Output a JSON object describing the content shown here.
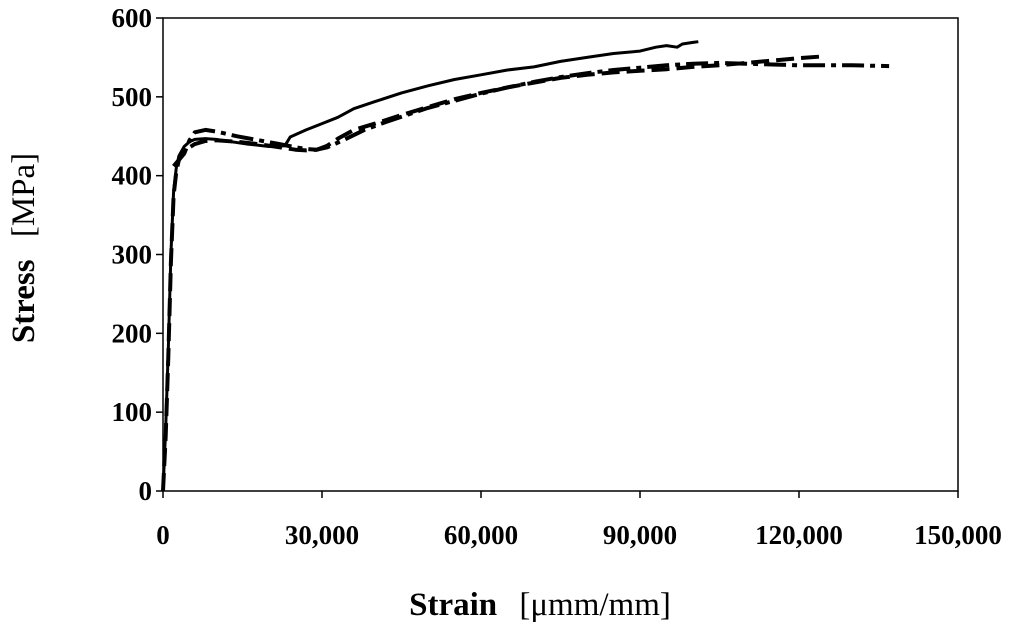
{
  "chart_data": {
    "type": "line",
    "title": "",
    "xlabel_main": "Strain",
    "xlabel_unit": "[μmm/mm]",
    "ylabel_main": "Stress",
    "ylabel_unit": "[MPa]",
    "xlim": [
      0,
      150000
    ],
    "ylim": [
      0,
      600
    ],
    "xticks": [
      0,
      30000,
      60000,
      90000,
      120000,
      150000
    ],
    "xtick_labels": [
      "0",
      "30,000",
      "60,000",
      "90,000",
      "120,000",
      "150,000"
    ],
    "yticks": [
      0,
      100,
      200,
      300,
      400,
      500,
      600
    ],
    "ytick_labels": [
      "0",
      "100",
      "200",
      "300",
      "400",
      "500",
      "600"
    ],
    "grid": false,
    "series": [
      {
        "style": "solid",
        "x": [
          0,
          500,
          1000,
          1500,
          2000,
          2500,
          3000,
          4000,
          5000,
          6000,
          8000,
          10000,
          13000,
          16000,
          20000,
          23000,
          24000,
          27000,
          30000,
          33000,
          36000,
          40000,
          45000,
          50000,
          55000,
          60000,
          65000,
          70000,
          75000,
          80000,
          85000,
          90000,
          93000,
          95000,
          97000,
          98000,
          100000,
          101000
        ],
        "y": [
          0,
          80,
          180,
          300,
          380,
          410,
          425,
          437,
          443,
          446,
          447,
          446,
          443,
          440,
          437,
          438,
          449,
          458,
          466,
          474,
          485,
          494,
          505,
          514,
          522,
          528,
          534,
          538,
          545,
          550,
          555,
          558,
          563,
          565,
          563,
          567,
          569,
          570
        ]
      },
      {
        "style": "dashed",
        "x": [
          0,
          500,
          1000,
          1500,
          2000,
          2500,
          3000,
          4000,
          5000,
          6000,
          8000,
          10000,
          14000,
          18000,
          22000,
          25000,
          27000,
          29000,
          31000,
          33000,
          36000,
          40000,
          45000,
          50000,
          55000,
          60000,
          65000,
          70000,
          75000,
          80000,
          85000,
          90000,
          95000,
          100000,
          105000,
          110000,
          115000,
          120000,
          124000
        ],
        "y": [
          0,
          70,
          170,
          290,
          375,
          405,
          420,
          432,
          436,
          440,
          444,
          445,
          443,
          440,
          436,
          433,
          432,
          433,
          438,
          447,
          458,
          466,
          477,
          487,
          497,
          505,
          512,
          518,
          524,
          528,
          531,
          533,
          535,
          538,
          540,
          543,
          546,
          549,
          551
        ]
      },
      {
        "style": "dash-dot",
        "x": [
          2000,
          3000,
          4000,
          5000,
          6000,
          8000,
          10000,
          14000,
          18000,
          22000,
          25000,
          27000,
          29000,
          31000,
          34000,
          38000,
          42000,
          46000,
          50000,
          55000,
          60000,
          65000,
          70000,
          75000,
          80000,
          85000,
          90000,
          95000,
          100000,
          105000,
          110000,
          115000,
          120000,
          125000,
          130000,
          137000
        ],
        "y": [
          412,
          420,
          428,
          445,
          455,
          458,
          456,
          450,
          445,
          440,
          436,
          434,
          433,
          436,
          445,
          458,
          468,
          477,
          486,
          495,
          504,
          512,
          519,
          525,
          530,
          534,
          537,
          540,
          542,
          543,
          542,
          541,
          540,
          540,
          540,
          539
        ]
      }
    ]
  }
}
